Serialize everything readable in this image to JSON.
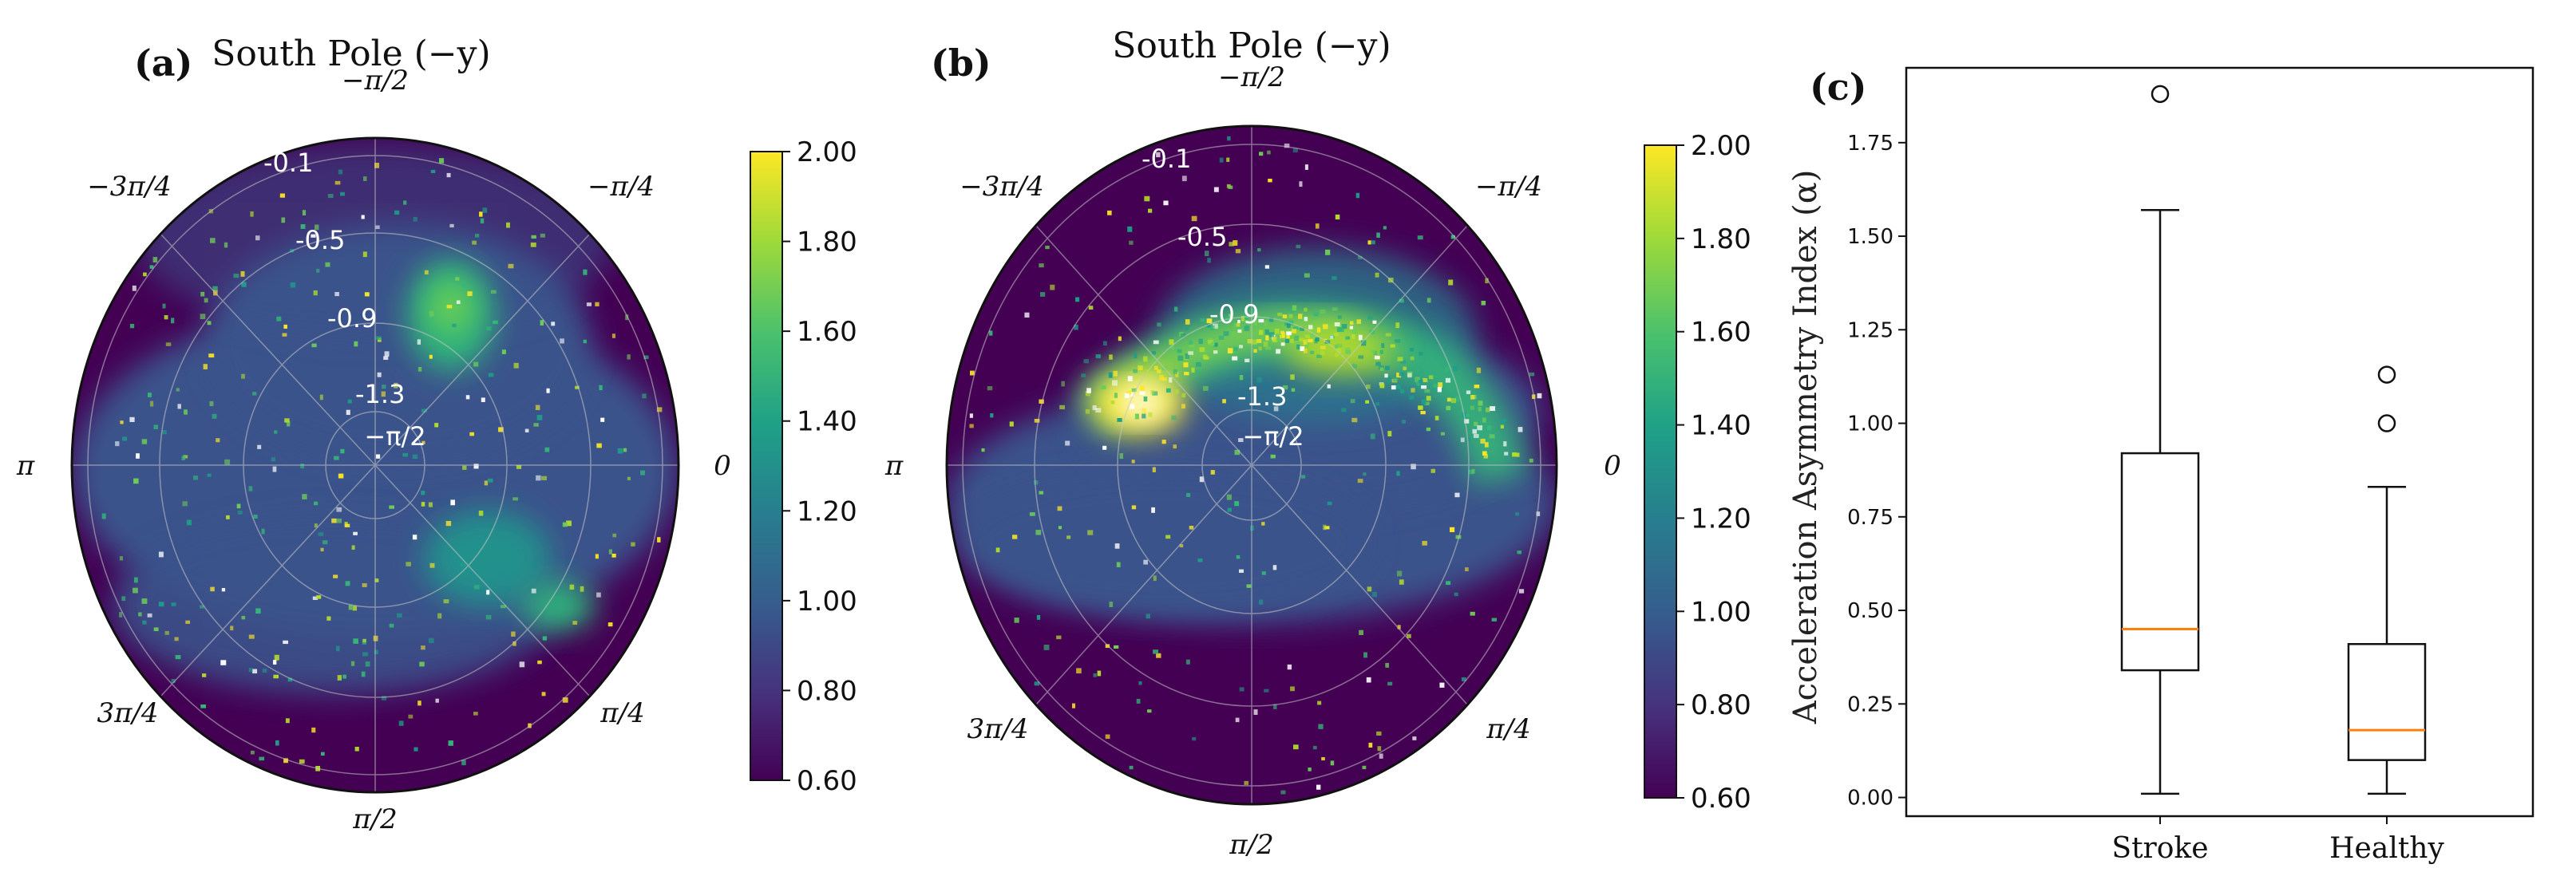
{
  "chart_data": [
    {
      "panel": "(a)",
      "type": "heatmap",
      "subtype": "polar",
      "title": "South Pole (−y)",
      "angular_tick_labels": [
        {
          "label": "0",
          "angle": 0
        },
        {
          "label": "−π/4",
          "angle": -0.7854
        },
        {
          "label": "−π/2",
          "angle": -1.5708
        },
        {
          "label": "−3π/4",
          "angle": -2.3562
        },
        {
          "label": "π",
          "angle": 3.1416
        },
        {
          "label": "3π/4",
          "angle": 2.3562
        },
        {
          "label": "π/2",
          "angle": 1.5708
        },
        {
          "label": "π/4",
          "angle": 0.7854
        }
      ],
      "center_label": "−π/2",
      "radial_tick_labels": [
        "-0.1",
        "-0.5",
        "-0.9",
        "-1.3"
      ],
      "colorbar": {
        "min": 0.6,
        "max": 2.0,
        "ticks": [
          "0.60",
          "0.80",
          "1.00",
          "1.20",
          "1.40",
          "1.60",
          "1.80",
          "2.00"
        ]
      },
      "hotspots": [
        {
          "angle": -1.2,
          "radius": 0.42,
          "value": 1.75
        },
        {
          "angle": 0.9,
          "radius": 0.55,
          "value": 1.45
        }
      ]
    },
    {
      "panel": "(b)",
      "type": "heatmap",
      "subtype": "polar",
      "title": "South Pole (−y)",
      "angular_tick_labels": [
        {
          "label": "0",
          "angle": 0
        },
        {
          "label": "−π/4",
          "angle": -0.7854
        },
        {
          "label": "−π/2",
          "angle": -1.5708
        },
        {
          "label": "−3π/4",
          "angle": -2.3562
        },
        {
          "label": "π",
          "angle": 3.1416
        },
        {
          "label": "3π/4",
          "angle": 2.3562
        },
        {
          "label": "π/2",
          "angle": 1.5708
        },
        {
          "label": "π/4",
          "angle": 0.7854
        }
      ],
      "center_label": "−π/2",
      "radial_tick_labels": [
        "-0.1",
        "-0.5",
        "-0.9",
        "-1.3"
      ],
      "colorbar": {
        "min": 0.6,
        "max": 2.0,
        "ticks": [
          "0.60",
          "0.80",
          "1.00",
          "1.20",
          "1.40",
          "1.60",
          "1.80",
          "2.00"
        ]
      },
      "hotspots": [
        {
          "angle": -2.55,
          "radius": 0.38,
          "value": 2.0
        },
        {
          "angle": -1.3,
          "radius": 0.45,
          "value": 1.85
        },
        {
          "angle": -0.6,
          "radius": 0.6,
          "value": 1.6
        }
      ]
    },
    {
      "panel": "(c)",
      "type": "box",
      "ylabel": "Acceleration Asymmetry Index (α)",
      "ylim": [
        -0.05,
        1.95
      ],
      "yticks": [
        "0.00",
        "0.25",
        "0.50",
        "0.75",
        "1.00",
        "1.25",
        "1.50",
        "1.75"
      ],
      "categories": [
        "Stroke",
        "Healthy"
      ],
      "boxes": [
        {
          "name": "Stroke",
          "whislo": 0.01,
          "q1": 0.34,
          "median": 0.45,
          "q3": 0.92,
          "whishi": 1.57,
          "fliers": [
            1.88
          ]
        },
        {
          "name": "Healthy",
          "whislo": 0.01,
          "q1": 0.1,
          "median": 0.18,
          "q3": 0.41,
          "whishi": 0.83,
          "fliers": [
            1.0,
            1.13
          ]
        }
      ]
    }
  ],
  "style": {
    "viridis_dark": "#440154",
    "bg_blue": "#3b528b",
    "median_color": "#ff7f0e"
  }
}
